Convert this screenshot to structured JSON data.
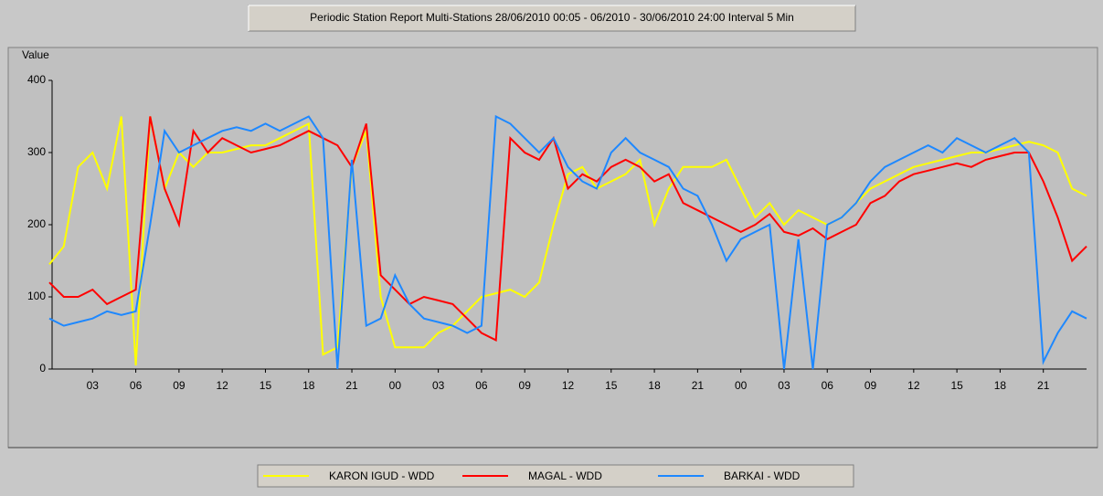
{
  "chart_data": {
    "type": "line",
    "title": "Periodic Station Report Multi-Stations 28/06/2010 00:05 - 06/2010 - 30/06/2010 24:00 Interval 5 Min",
    "y_label": "Value",
    "x": [
      0,
      1,
      2,
      3,
      4,
      5,
      6,
      7,
      8,
      9,
      10,
      11,
      12,
      13,
      14,
      15,
      16,
      17,
      18,
      19,
      20,
      21,
      22,
      23,
      24,
      25,
      26,
      27,
      28,
      29,
      30,
      31,
      32,
      33,
      34,
      35,
      36,
      37,
      38,
      39,
      40,
      41,
      42,
      43,
      44,
      45,
      46,
      47,
      48,
      49,
      50,
      51,
      52,
      53,
      54,
      55,
      56,
      57,
      58,
      59,
      60,
      61,
      62,
      63,
      64,
      65,
      66,
      67,
      68,
      69,
      70,
      71,
      72
    ],
    "xlim": [
      0,
      72
    ],
    "xticks": [
      {
        "value": 3,
        "label": "03"
      },
      {
        "value": 6,
        "label": "06"
      },
      {
        "value": 9,
        "label": "09"
      },
      12,
      15,
      18,
      21,
      {
        "value": 24,
        "label": "00"
      },
      {
        "value": 27,
        "label": "03"
      },
      {
        "value": 30,
        "label": "06"
      },
      {
        "value": 33,
        "label": "09"
      },
      {
        "value": 36,
        "label": "12"
      },
      {
        "value": 39,
        "label": "15"
      },
      {
        "value": 42,
        "label": "18"
      },
      {
        "value": 45,
        "label": "21"
      },
      {
        "value": 48,
        "label": "00"
      },
      {
        "value": 51,
        "label": "03"
      },
      {
        "value": 54,
        "label": "06"
      },
      {
        "value": 57,
        "label": "09"
      },
      {
        "value": 60,
        "label": "12"
      },
      {
        "value": 63,
        "label": "15"
      },
      {
        "value": 66,
        "label": "18"
      },
      {
        "value": 69,
        "label": "21"
      }
    ],
    "ylim": [
      0,
      400
    ],
    "yticks": [
      0,
      100,
      200,
      300,
      400
    ],
    "grid": false,
    "legend": "bottom",
    "series": [
      {
        "name": "KARON IGUD - WDD",
        "color": "#ffff00",
        "values": [
          145,
          170,
          280,
          300,
          250,
          350,
          5,
          350,
          250,
          300,
          280,
          300,
          300,
          305,
          310,
          310,
          320,
          330,
          340,
          20,
          30,
          280,
          330,
          100,
          30,
          30,
          30,
          50,
          60,
          80,
          100,
          105,
          110,
          100,
          120,
          200,
          270,
          280,
          250,
          260,
          270,
          290,
          200,
          250,
          280,
          280,
          280,
          290,
          250,
          210,
          230,
          200,
          220,
          210,
          200,
          210,
          230,
          250,
          260,
          270,
          280,
          285,
          290,
          295,
          300,
          300,
          305,
          310,
          315,
          310,
          300,
          250,
          240
        ]
      },
      {
        "name": "MAGAL - WDD",
        "color": "#ff0000",
        "values": [
          120,
          100,
          100,
          110,
          90,
          100,
          110,
          350,
          250,
          200,
          330,
          300,
          320,
          310,
          300,
          305,
          310,
          320,
          330,
          320,
          310,
          280,
          340,
          130,
          110,
          90,
          100,
          95,
          90,
          70,
          50,
          40,
          320,
          300,
          290,
          320,
          250,
          270,
          260,
          280,
          290,
          280,
          260,
          270,
          230,
          220,
          210,
          200,
          190,
          200,
          215,
          190,
          185,
          195,
          180,
          190,
          200,
          230,
          240,
          260,
          270,
          275,
          280,
          285,
          280,
          290,
          295,
          300,
          300,
          260,
          210,
          150,
          170
        ]
      },
      {
        "name": "BARKAI - WDD",
        "color": "#1e88ff",
        "values": [
          70,
          60,
          65,
          70,
          80,
          75,
          80,
          200,
          330,
          300,
          310,
          320,
          330,
          335,
          330,
          340,
          330,
          340,
          350,
          320,
          0,
          290,
          60,
          70,
          130,
          90,
          70,
          65,
          60,
          50,
          60,
          350,
          340,
          320,
          300,
          320,
          280,
          260,
          250,
          300,
          320,
          300,
          290,
          280,
          250,
          240,
          200,
          150,
          180,
          190,
          200,
          0,
          180,
          0,
          200,
          210,
          230,
          260,
          280,
          290,
          300,
          310,
          300,
          320,
          310,
          300,
          310,
          320,
          300,
          10,
          50,
          80,
          70
        ]
      }
    ]
  }
}
